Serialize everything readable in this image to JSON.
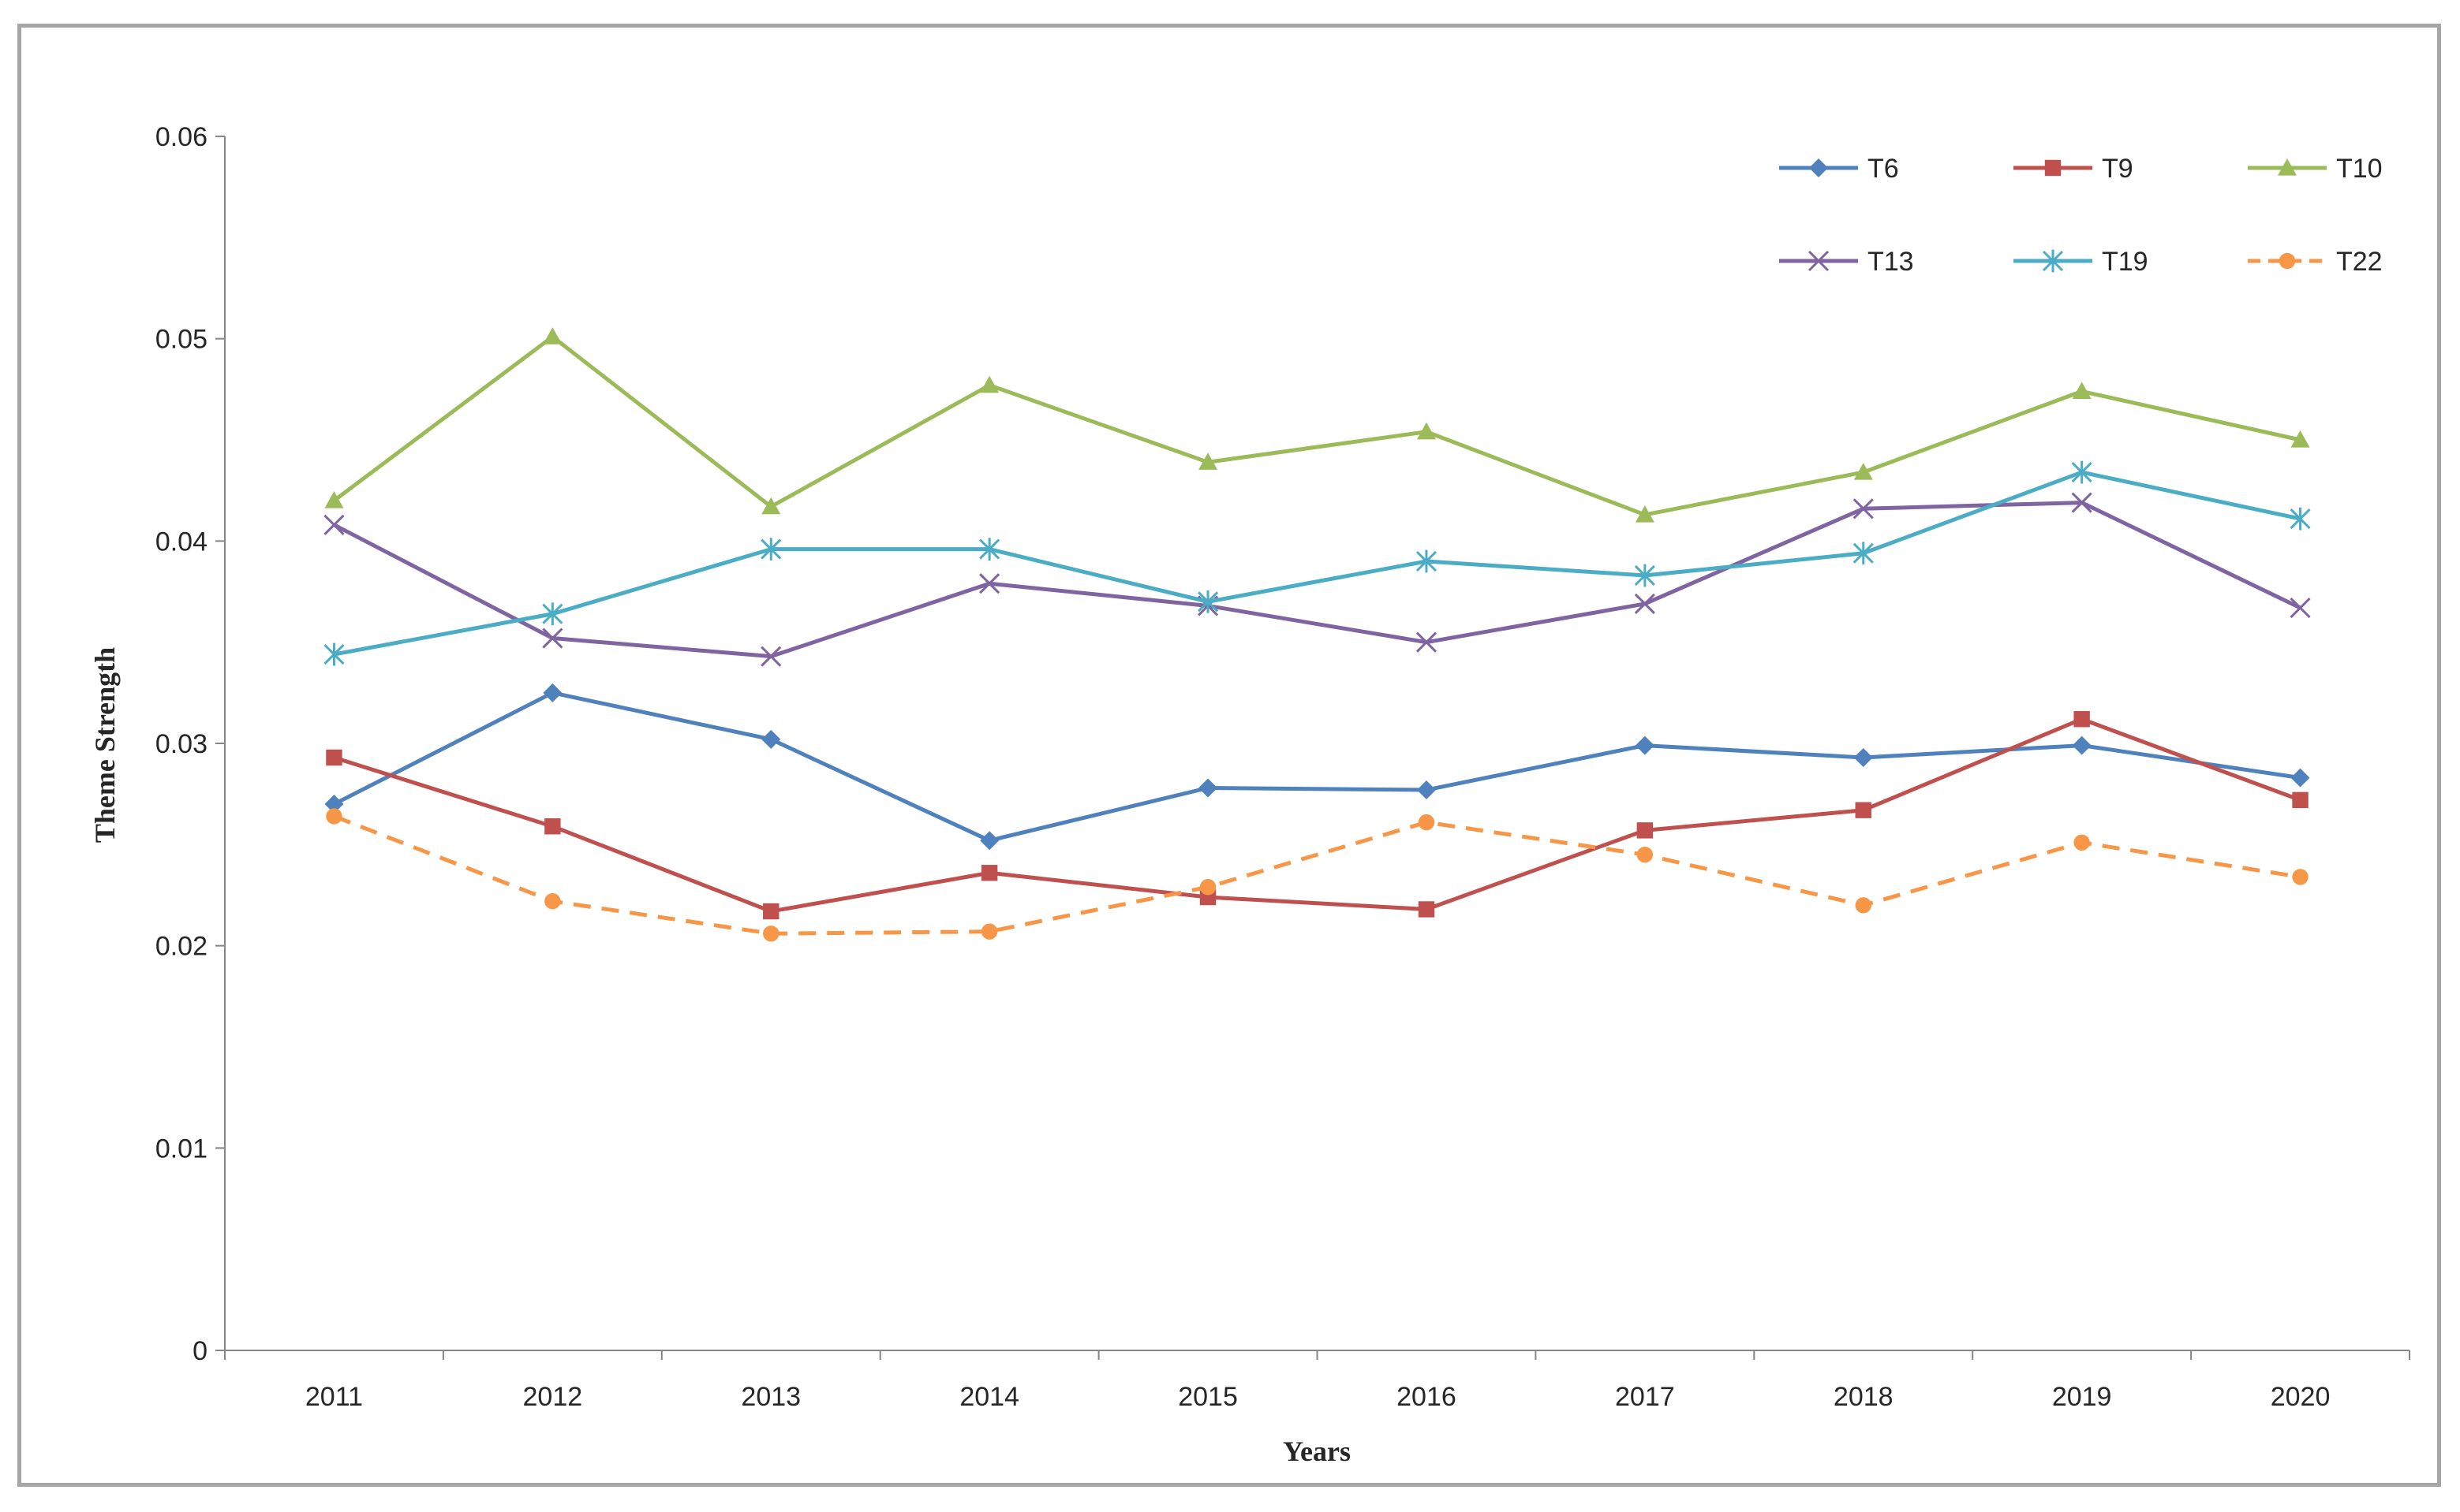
{
  "chart_data": {
    "type": "line",
    "title": "",
    "xlabel": "Years",
    "ylabel": "Theme Strength",
    "categories": [
      "2011",
      "2012",
      "2013",
      "2014",
      "2015",
      "2016",
      "2017",
      "2018",
      "2019",
      "2020"
    ],
    "ylim": [
      0,
      0.06
    ],
    "yticks": [
      0,
      0.01,
      0.02,
      0.03,
      0.04,
      0.05,
      0.06
    ],
    "ytick_labels": [
      "0",
      "0.01",
      "0.02",
      "0.03",
      "0.04",
      "0.05",
      "0.06"
    ],
    "grid": false,
    "legend_position": "top-right",
    "series": [
      {
        "name": "T6",
        "color": "#4f81bd",
        "marker": "diamond",
        "dashed": false,
        "values": [
          0.027,
          0.0325,
          0.0302,
          0.0252,
          0.0278,
          0.0277,
          0.0299,
          0.0293,
          0.0299,
          0.0283
        ]
      },
      {
        "name": "T9",
        "color": "#c0504d",
        "marker": "square",
        "dashed": false,
        "values": [
          0.0293,
          0.0259,
          0.0217,
          0.0236,
          0.0224,
          0.0218,
          0.0257,
          0.0267,
          0.0312,
          0.0272
        ]
      },
      {
        "name": "T10",
        "color": "#9bbb59",
        "marker": "triangle",
        "dashed": false,
        "values": [
          0.042,
          0.0501,
          0.0417,
          0.0477,
          0.0439,
          0.0454,
          0.0413,
          0.0434,
          0.0474,
          0.045
        ]
      },
      {
        "name": "T13",
        "color": "#8064a2",
        "marker": "x",
        "dashed": false,
        "values": [
          0.0408,
          0.0352,
          0.0343,
          0.0379,
          0.0368,
          0.035,
          0.0369,
          0.0416,
          0.0419,
          0.0367
        ]
      },
      {
        "name": "T19",
        "color": "#4bacc6",
        "marker": "star",
        "dashed": false,
        "values": [
          0.0344,
          0.0364,
          0.0396,
          0.0396,
          0.037,
          0.039,
          0.0383,
          0.0394,
          0.0434,
          0.0411
        ]
      },
      {
        "name": "T22",
        "color": "#f79646",
        "marker": "circle",
        "dashed": true,
        "values": [
          0.0264,
          0.0222,
          0.0206,
          0.0207,
          0.0229,
          0.0261,
          0.0245,
          0.022,
          0.0251,
          0.0234
        ]
      }
    ]
  }
}
